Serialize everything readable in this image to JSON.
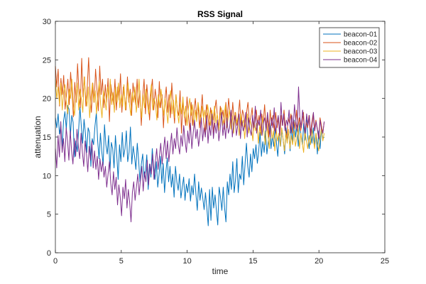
{
  "chart_data": {
    "type": "line",
    "title": "RSS Signal",
    "xlabel": "time",
    "ylabel": "attenuation",
    "xlim": [
      0,
      25
    ],
    "ylim": [
      0,
      30
    ],
    "xticks": [
      "0",
      "5",
      "10",
      "15",
      "20",
      "25"
    ],
    "yticks": [
      "0",
      "5",
      "10",
      "15",
      "20",
      "25",
      "30"
    ],
    "grid": false,
    "legend_position": "top-right",
    "x_start": 0,
    "x_end": 20.4,
    "series": [
      {
        "name": "beacon-01",
        "color": "#0072BD",
        "values": [
          17.5,
          16.2,
          18.0,
          15.4,
          16.5,
          13.8,
          17.1,
          18.3,
          16.0,
          19.1,
          18.6,
          15.2,
          17.8,
          16.9,
          12.4,
          14.5,
          13.1,
          15.8,
          18.9,
          16.4,
          14.2,
          17.3,
          15.5,
          13.0,
          16.2,
          15.6,
          11.2,
          14.8,
          14.0,
          16.4,
          18.1,
          14.5,
          12.2,
          15.5,
          13.1,
          11.4,
          16.6,
          14.0,
          12.8,
          15.2,
          10.5,
          14.3,
          13.5,
          11.0,
          15.2,
          12.6,
          9.5,
          14.0,
          11.8,
          15.6,
          12.4,
          13.5,
          15.8,
          11.8,
          13.0,
          16.3,
          11.5,
          13.8,
          12.5,
          10.8,
          14.2,
          12.0,
          9.2,
          11.5,
          12.8,
          9.6,
          10.6,
          12.7,
          8.2,
          11.5,
          9.8,
          13.5,
          11.2,
          9.5,
          11.8,
          8.5,
          10.2,
          12.5,
          9.0,
          11.6,
          7.8,
          10.5,
          12.3,
          9.2,
          11.2,
          8.5,
          10.2,
          7.2,
          11.2,
          9.2,
          8.1,
          10.2,
          7.1,
          8.5,
          9.8,
          6.8,
          8.9,
          7.8,
          9.6,
          6.7,
          8.7,
          7.5,
          10.2,
          7.6,
          5.5,
          9.2,
          6.8,
          8.4,
          7.1,
          5.6,
          7.8,
          5.8,
          3.5,
          8.2,
          4.2,
          8.5,
          5.8,
          7.5,
          5.5,
          3.6,
          8.5,
          7.2,
          5.5,
          8.5,
          5.8,
          4.0,
          9.2,
          7.5,
          10.2,
          8.2,
          11.8,
          7.8,
          9.5,
          12.2,
          7.8,
          10.2,
          9.5,
          12.5,
          8.8,
          11.5,
          14.2,
          11.2,
          9.8,
          12.8,
          10.5,
          13.5,
          12.2,
          14.0,
          11.6,
          13.2,
          15.6,
          12.5,
          14.4,
          13.0,
          15.8,
          12.8,
          14.4,
          16.8,
          13.5,
          15.2,
          13.8,
          16.2,
          14.2,
          12.5,
          15.5,
          13.8,
          16.0,
          14.5,
          12.8,
          16.2,
          14.6,
          15.8,
          13.2,
          16.5,
          14.2,
          17.2,
          15.0,
          16.5,
          13.8,
          17.0,
          15.2,
          14.0,
          16.8,
          14.6,
          17.5,
          15.0,
          13.5,
          15.8,
          14.2,
          16.2,
          14.0,
          15.5,
          12.8,
          15.8,
          13.5,
          16.2,
          14.8,
          15.0
        ]
      },
      {
        "name": "beacon-02",
        "color": "#D95319",
        "values": [
          24.2,
          21.5,
          23.8,
          19.0,
          22.6,
          20.5,
          23.0,
          18.6,
          20.4,
          22.5,
          19.2,
          23.4,
          20.8,
          17.6,
          22.1,
          19.5,
          24.5,
          21.0,
          18.8,
          25.2,
          20.2,
          22.8,
          19.0,
          21.5,
          25.3,
          20.5,
          18.2,
          22.0,
          19.5,
          23.8,
          21.2,
          18.4,
          24.2,
          20.5,
          22.5,
          18.8,
          21.8,
          19.5,
          22.6,
          17.0,
          21.8,
          20.5,
          19.2,
          22.5,
          18.5,
          21.5,
          19.8,
          23.2,
          18.2,
          21.5,
          20.2,
          18.5,
          22.8,
          19.5,
          21.2,
          17.8,
          22.0,
          20.5,
          19.2,
          22.5,
          18.8,
          21.0,
          16.5,
          20.2,
          22.5,
          18.0,
          21.8,
          19.5,
          17.2,
          20.8,
          22.5,
          18.5,
          21.2,
          19.8,
          17.5,
          22.2,
          18.8,
          20.5,
          16.2,
          19.8,
          21.5,
          18.2,
          20.5,
          17.5,
          22.0,
          19.2,
          16.8,
          20.5,
          18.5,
          17.8,
          21.0,
          15.5,
          19.5,
          18.0,
          16.5,
          20.2,
          17.8,
          15.8,
          19.5,
          16.5,
          18.5,
          20.0,
          17.5,
          19.2,
          16.2,
          18.2,
          20.5,
          17.0,
          15.5,
          19.2,
          17.8,
          16.2,
          18.8,
          17.2,
          15.5,
          18.5,
          19.8,
          17.5,
          16.2,
          19.0,
          17.5,
          18.5,
          16.0,
          19.5,
          17.2,
          20.0,
          18.0,
          16.5,
          19.5,
          17.0,
          18.2,
          16.5,
          17.8,
          19.8,
          16.2,
          18.5,
          17.8,
          16.0,
          18.2,
          19.5,
          16.8,
          17.5,
          18.8,
          15.8,
          17.2,
          18.5,
          16.5,
          17.8,
          15.5,
          18.0,
          16.8,
          19.2,
          16.2,
          17.5,
          15.0,
          18.5,
          16.5,
          17.8,
          15.8,
          18.2,
          16.2,
          17.5,
          15.2,
          17.8,
          16.5,
          18.5,
          16.0,
          14.8,
          17.5,
          16.8,
          18.0,
          15.5,
          17.2,
          16.0,
          18.5,
          16.2,
          17.5,
          15.8,
          16.8,
          18.2,
          15.5,
          17.0,
          16.2,
          17.8,
          15.2,
          16.8,
          18.0,
          15.8,
          17.2,
          16.0,
          14.8,
          17.5,
          16.5,
          15.5,
          17.0
        ]
      },
      {
        "name": "beacon-03",
        "color": "#EDB120",
        "values": [
          22.5,
          20.0,
          21.5,
          19.2,
          22.0,
          18.5,
          20.8,
          21.8,
          19.5,
          18.0,
          21.2,
          20.0,
          22.5,
          19.0,
          17.8,
          20.5,
          22.0,
          18.5,
          21.2,
          19.8,
          18.2,
          22.8,
          20.5,
          19.0,
          21.5,
          17.5,
          20.2,
          22.0,
          19.5,
          21.0,
          18.0,
          20.5,
          22.2,
          19.2,
          17.5,
          21.0,
          19.8,
          18.5,
          21.5,
          20.0,
          22.5,
          19.2,
          20.8,
          18.2,
          21.5,
          19.5,
          22.0,
          18.8,
          20.5,
          19.0,
          21.8,
          18.5,
          20.2,
          22.0,
          19.2,
          17.8,
          20.8,
          19.5,
          21.5,
          18.2,
          20.0,
          22.5,
          19.0,
          17.5,
          20.5,
          18.8,
          21.2,
          19.5,
          18.0,
          20.2,
          21.8,
          18.5,
          20.0,
          19.2,
          17.2,
          20.5,
          18.8,
          21.2,
          19.5,
          17.8,
          20.0,
          18.5,
          16.8,
          19.5,
          21.0,
          18.0,
          19.8,
          17.5,
          20.5,
          18.2,
          16.8,
          19.5,
          18.0,
          20.2,
          17.5,
          19.0,
          16.5,
          18.8,
          20.0,
          17.8,
          19.2,
          16.2,
          18.5,
          17.0,
          19.5,
          18.2,
          16.8,
          19.0,
          17.5,
          18.5,
          16.0,
          19.2,
          17.8,
          16.5,
          18.5,
          17.2,
          19.0,
          16.8,
          18.0,
          15.8,
          17.5,
          18.8,
          16.5,
          17.8,
          19.2,
          16.2,
          17.5,
          18.5,
          16.0,
          17.8,
          15.5,
          18.2,
          16.8,
          17.5,
          15.2,
          18.0,
          16.5,
          17.2,
          14.8,
          16.8,
          18.0,
          15.5,
          17.2,
          16.2,
          14.5,
          17.0,
          15.8,
          16.8,
          14.2,
          16.5,
          15.2,
          17.5,
          15.8,
          14.0,
          16.8,
          15.2,
          13.5,
          16.5,
          14.8,
          15.8,
          13.2,
          16.0,
          14.5,
          15.5,
          13.8,
          16.2,
          14.8,
          13.2,
          15.5,
          14.2,
          16.0,
          13.5,
          15.2,
          14.0,
          15.8,
          13.8,
          14.8,
          16.2,
          13.5,
          15.5,
          14.2,
          13.0,
          15.8,
          14.5,
          13.5,
          15.2,
          14.0,
          16.0,
          14.8,
          13.5,
          15.5,
          14.2,
          13.2,
          15.0,
          16.2,
          14.5,
          15.5
        ]
      },
      {
        "name": "beacon-04",
        "color": "#7E2F8E",
        "values": [
          13.5,
          11.0,
          15.2,
          12.4,
          17.0,
          13.0,
          14.8,
          11.8,
          16.2,
          14.5,
          12.0,
          15.8,
          13.2,
          11.5,
          14.8,
          12.5,
          16.0,
          13.8,
          12.2,
          15.5,
          13.0,
          11.2,
          14.5,
          12.8,
          10.5,
          13.8,
          12.0,
          14.5,
          11.0,
          13.2,
          10.8,
          12.5,
          9.5,
          12.2,
          10.5,
          11.8,
          9.8,
          11.2,
          8.5,
          10.2,
          11.8,
          9.0,
          7.5,
          10.5,
          8.2,
          9.8,
          6.2,
          8.8,
          7.2,
          4.8,
          8.5,
          7.0,
          9.5,
          5.8,
          8.2,
          6.5,
          4.0,
          7.8,
          9.2,
          6.8,
          8.5,
          10.2,
          7.5,
          9.5,
          11.2,
          8.0,
          10.5,
          9.2,
          12.0,
          8.8,
          11.5,
          10.2,
          12.8,
          9.5,
          11.8,
          13.5,
          10.8,
          12.5,
          14.2,
          11.5,
          13.2,
          15.0,
          12.2,
          14.5,
          11.8,
          13.8,
          15.5,
          12.8,
          14.8,
          13.5,
          16.2,
          14.0,
          12.8,
          15.2,
          13.8,
          16.5,
          14.5,
          13.0,
          15.8,
          14.2,
          16.8,
          13.5,
          15.5,
          17.2,
          14.8,
          16.0,
          13.8,
          15.2,
          17.5,
          14.5,
          16.2,
          15.0,
          17.8,
          14.2,
          16.5,
          15.2,
          18.0,
          14.8,
          16.8,
          15.5,
          17.2,
          14.5,
          16.0,
          18.2,
          15.2,
          16.8,
          14.8,
          17.5,
          15.5,
          16.2,
          18.5,
          15.0,
          16.8,
          17.8,
          15.2,
          16.5,
          18.0,
          14.8,
          17.2,
          15.8,
          16.5,
          18.2,
          15.0,
          17.5,
          16.0,
          15.2,
          17.8,
          16.2,
          19.0,
          15.5,
          17.2,
          16.5,
          18.5,
          15.2,
          16.8,
          17.5,
          15.8,
          18.2,
          16.5,
          15.0,
          17.5,
          16.2,
          18.8,
          15.5,
          16.8,
          17.8,
          15.2,
          19.5,
          16.5,
          18.0,
          15.8,
          17.2,
          16.5,
          18.5,
          15.5,
          17.8,
          16.2,
          19.2,
          17.0,
          15.8,
          21.5,
          17.5,
          16.2,
          18.5,
          16.8,
          15.5,
          18.0,
          16.5,
          17.8,
          15.2,
          16.5,
          18.2,
          15.8,
          17.0,
          16.0,
          14.8,
          17.2,
          16.0,
          15.5,
          17.0
        ]
      }
    ]
  }
}
